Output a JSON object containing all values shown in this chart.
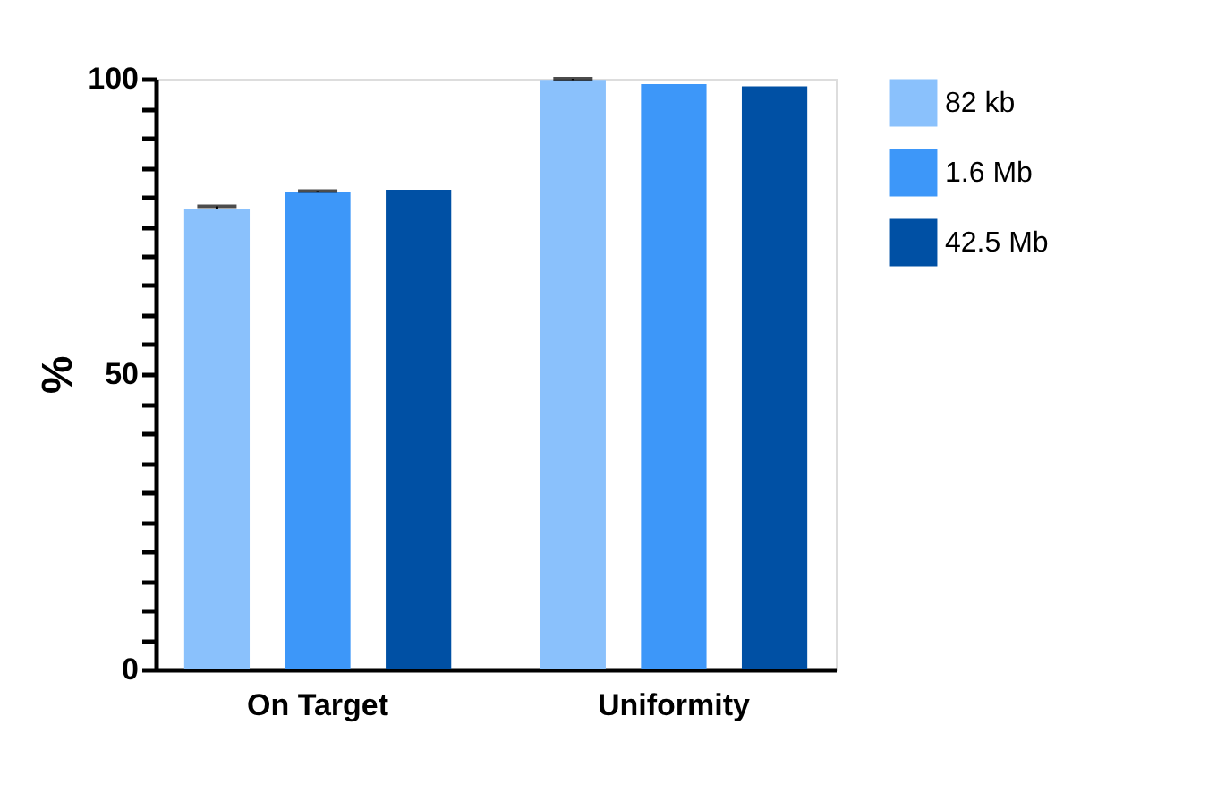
{
  "chart_data": {
    "type": "bar",
    "ylabel": "%",
    "categories": [
      "On Target",
      "Uniformity"
    ],
    "series": [
      {
        "name": "82 kb",
        "color": "#8ac1fc",
        "values": [
          77.9,
          99.8
        ],
        "errors": [
          [
            77.9,
            78.4
          ],
          [
            99.8,
            100.0
          ]
        ]
      },
      {
        "name": "1.6 Mb",
        "color": "#3d97f9",
        "values": [
          80.9,
          99.1
        ],
        "errors": [
          [
            80.9,
            81.0
          ],
          null
        ]
      },
      {
        "name": "42.5 Mb",
        "color": "#0050a4",
        "values": [
          81.2,
          98.7
        ],
        "errors": [
          null,
          null
        ]
      }
    ],
    "ylim": [
      0,
      100
    ],
    "yticks": [
      0,
      {
        "value": 5,
        "label": null
      },
      {
        "value": 10,
        "label": null
      },
      {
        "value": 15,
        "label": null
      },
      {
        "value": 20,
        "label": null
      },
      {
        "value": 25,
        "label": null
      },
      {
        "value": 30,
        "label": null
      },
      {
        "value": 35,
        "label": null
      },
      {
        "value": 40,
        "label": null
      },
      {
        "value": 45,
        "label": null
      },
      50,
      {
        "value": 55,
        "label": null
      },
      {
        "value": 60,
        "label": null
      },
      {
        "value": 65,
        "label": null
      },
      {
        "value": 70,
        "label": null
      },
      {
        "value": 75,
        "label": null
      },
      {
        "value": 80,
        "label": null
      },
      {
        "value": 85,
        "label": null
      },
      {
        "value": 90,
        "label": null
      },
      {
        "value": 95,
        "label": null
      },
      100
    ],
    "grid": false,
    "legend": "top right"
  }
}
